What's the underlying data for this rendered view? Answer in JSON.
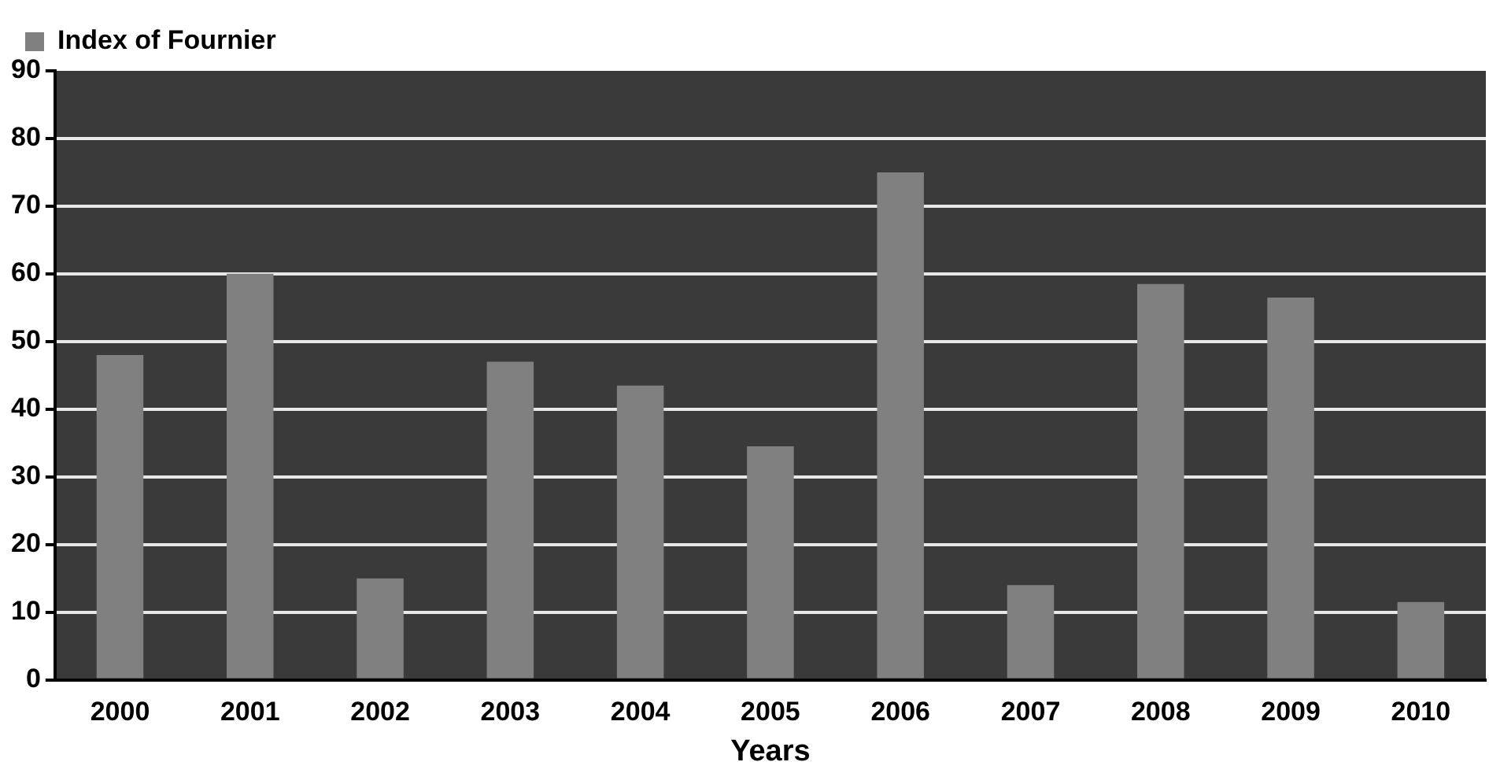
{
  "chart_data": {
    "type": "bar",
    "xlabel": "Years",
    "categories": [
      "2000",
      "2001",
      "2002",
      "2003",
      "2004",
      "2005",
      "2006",
      "2007",
      "2008",
      "2009",
      "2010"
    ],
    "series": [
      {
        "name": "Index of Fournier",
        "color": "#808080",
        "values": [
          48,
          60,
          15,
          47,
          43.5,
          34.5,
          75,
          14,
          58.5,
          56.5,
          11.5
        ]
      }
    ],
    "ylim": [
      0,
      90
    ],
    "yticks": [
      0,
      10,
      20,
      30,
      40,
      50,
      60,
      70,
      80,
      90
    ],
    "grid": "y",
    "legend": "top left"
  }
}
